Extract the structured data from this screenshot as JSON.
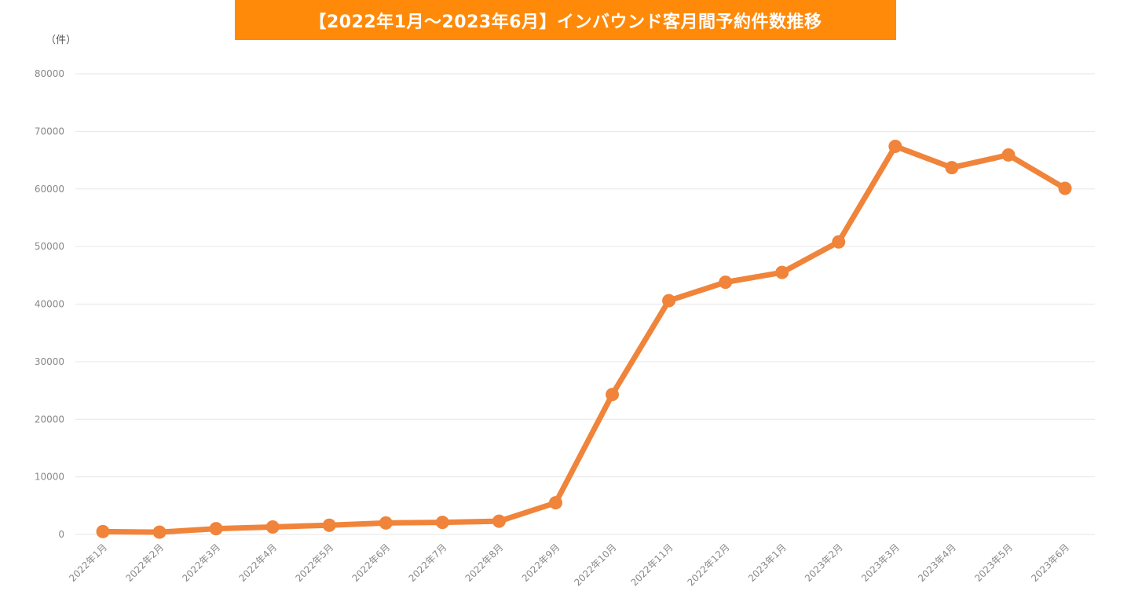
{
  "title": "【2022年1月～2023年6月】インバウンド客月間予約件数推移",
  "unit": "（件）",
  "colors": {
    "banner": "#ff8a0a",
    "line": "#f0843a",
    "grid": "#e6e6e6",
    "tick": "#888888"
  },
  "chart_data": {
    "type": "line",
    "title": "【2022年1月～2023年6月】インバウンド客月間予約件数推移",
    "ylabel": "（件）",
    "xlabel": "",
    "ylim": [
      0,
      80000
    ],
    "yticks": [
      0,
      10000,
      20000,
      30000,
      40000,
      50000,
      60000,
      70000,
      80000
    ],
    "grid": true,
    "legend": "none",
    "categories": [
      "2022年1月",
      "2022年2月",
      "2022年3月",
      "2022年4月",
      "2022年5月",
      "2022年6月",
      "2022年7月",
      "2022年8月",
      "2022年9月",
      "2022年10月",
      "2022年11月",
      "2022年12月",
      "2023年1月",
      "2023年2月",
      "2023年3月",
      "2023年4月",
      "2023年5月",
      "2023年6月"
    ],
    "series": [
      {
        "values": [
          500,
          400,
          1000,
          1300,
          1600,
          2000,
          2100,
          2300,
          5500,
          24300,
          40600,
          43800,
          45500,
          50800,
          67400,
          63700,
          65900,
          60100
        ]
      }
    ]
  }
}
